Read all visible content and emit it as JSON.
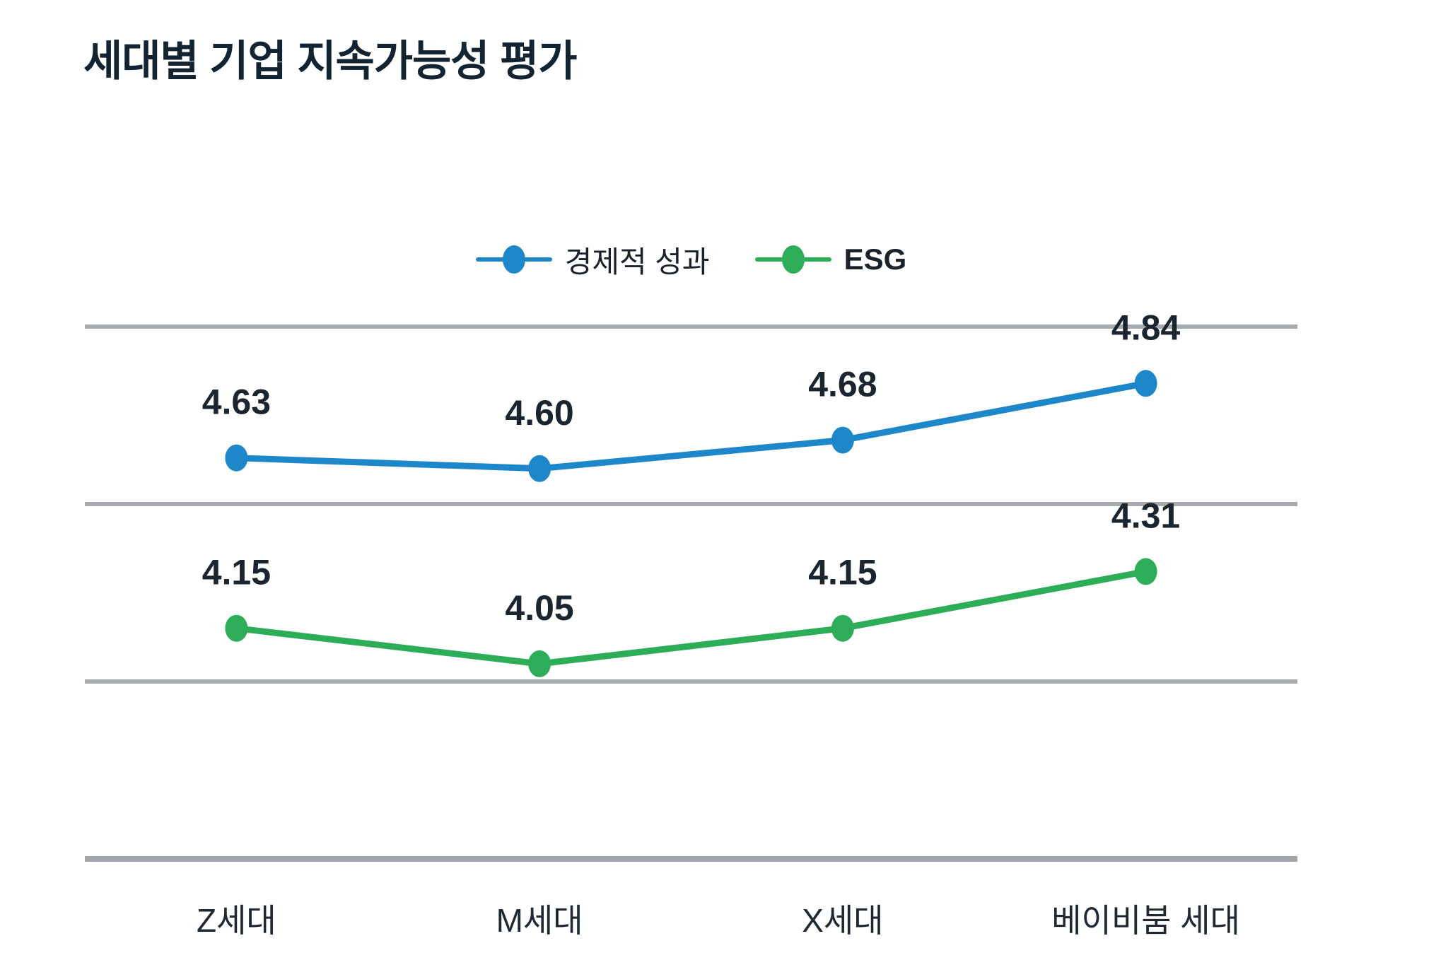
{
  "title": "세대별 기업 지속가능성 평가",
  "colors": {
    "title": "#122331",
    "value_label": "#1b2530",
    "axis_label": "#1f2833",
    "legend_text": "#1b222c",
    "gridline": "#a7aaae",
    "axis_line": "#a2a6ab",
    "series_blue": "#1e87c9",
    "series_green": "#2ead59",
    "background": "#ffffff"
  },
  "legend": {
    "items": [
      {
        "label": "경제적 성과",
        "color": "#1e87c9",
        "bold": false
      },
      {
        "label": "ESG",
        "color": "#2ead59",
        "bold": true
      }
    ]
  },
  "chart_data": {
    "type": "line",
    "title": "세대별 기업 지속가능성 평가",
    "categories": [
      "Z세대",
      "M세대",
      "X세대",
      "베이비붐 세대"
    ],
    "series": [
      {
        "name": "경제적 성과",
        "color": "#1e87c9",
        "values": [
          4.63,
          4.6,
          4.68,
          4.84
        ]
      },
      {
        "name": "ESG",
        "color": "#2ead59",
        "values": [
          4.15,
          4.05,
          4.15,
          4.31
        ]
      }
    ],
    "xlabel": "",
    "ylabel": "",
    "ylim": [
      3.5,
      5.0
    ],
    "grid_step": 0.5,
    "grid": true,
    "y_tick_labels_visible": false,
    "data_labels": true,
    "data_label_decimals": 2,
    "legend_position": "top-center"
  }
}
